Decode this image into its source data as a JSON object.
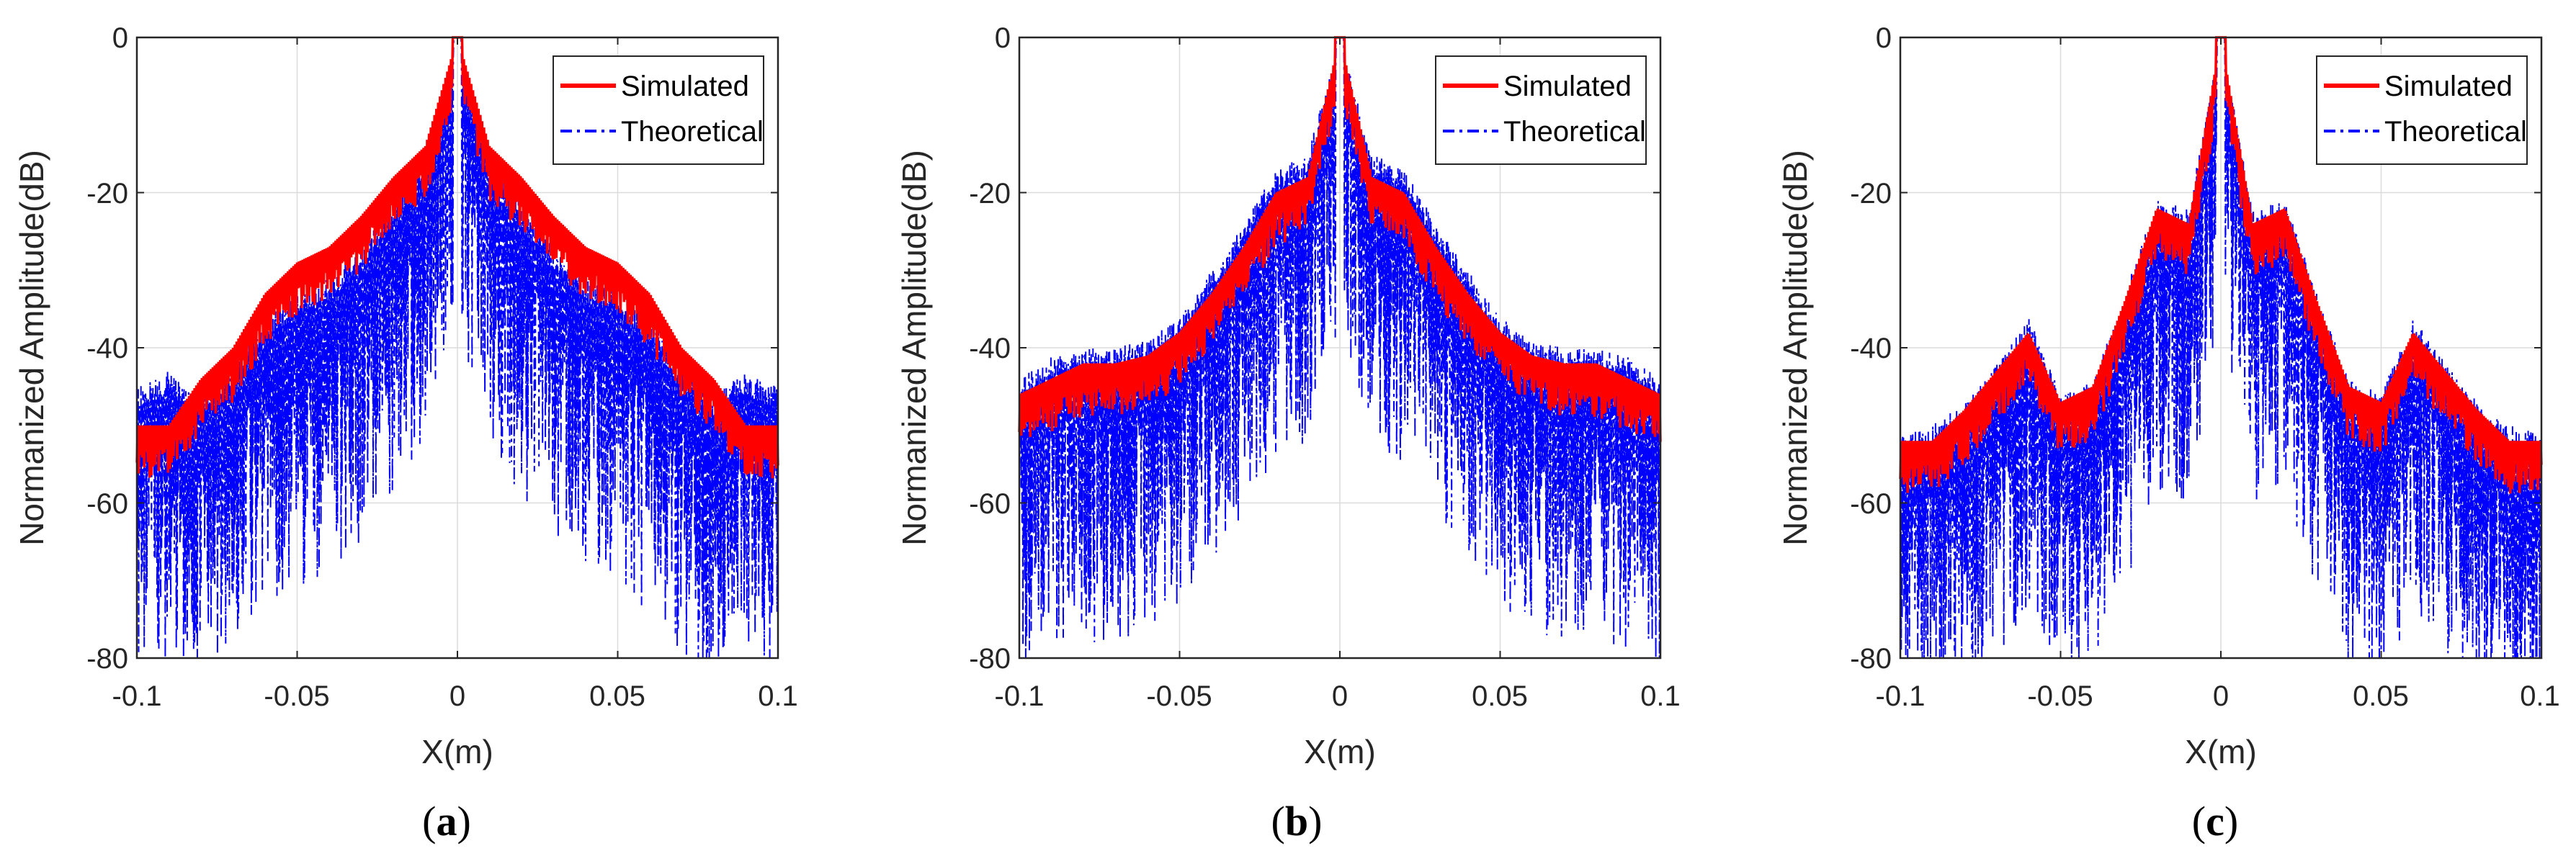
{
  "figure": {
    "colors": {
      "simulated": "#ff0000",
      "theoretical": "#0000ff",
      "grid": "#dcdcdc",
      "axis": "#262626"
    }
  },
  "chart_data": [
    {
      "type": "line",
      "panel": "a",
      "caption": {
        "open": "(",
        "letter": "a",
        "close": ")"
      },
      "xlabel": "X(m)",
      "ylabel": "Normanized Amplitude(dB)",
      "xlim": [
        -0.1,
        0.1
      ],
      "ylim": [
        -80,
        0
      ],
      "xticks": [
        -0.1,
        -0.05,
        0,
        0.05,
        0.1
      ],
      "xtick_labels": [
        "-0.1",
        "-0.05",
        "0",
        "0.05",
        "0.1"
      ],
      "yticks": [
        0,
        -20,
        -40,
        -60,
        -80
      ],
      "ytick_labels": [
        "0",
        "-20",
        "-40",
        "-60",
        "-80"
      ],
      "grid": true,
      "legend": {
        "position": "top-right",
        "entries": [
          "Simulated",
          "Theoretical"
        ]
      },
      "series": [
        {
          "name": "Simulated",
          "style": "solid",
          "x": [
            -0.1,
            -0.09,
            -0.08,
            -0.07,
            -0.06,
            -0.05,
            -0.04,
            -0.03,
            -0.02,
            -0.01,
            0,
            0.01,
            0.02,
            0.03,
            0.04,
            0.05,
            0.06,
            0.07,
            0.08,
            0.09,
            0.1
          ],
          "envelope": [
            -50,
            -50,
            -44,
            -40,
            -33,
            -29,
            -27,
            -23,
            -18,
            -14,
            0,
            -14,
            -18,
            -23,
            -27,
            -29,
            -33,
            -40,
            -44,
            -50,
            -50
          ]
        },
        {
          "name": "Theoretical",
          "style": "dashdot",
          "x": [
            -0.1,
            -0.09,
            -0.08,
            -0.07,
            -0.06,
            -0.05,
            -0.04,
            -0.03,
            -0.02,
            -0.01,
            0,
            0.01,
            0.02,
            0.03,
            0.04,
            0.05,
            0.06,
            0.07,
            0.08,
            0.09,
            0.1
          ],
          "envelope": [
            -45,
            -43,
            -46,
            -42,
            -36,
            -33,
            -31,
            -27,
            -21,
            -15,
            0,
            -15,
            -21,
            -27,
            -31,
            -33,
            -36,
            -42,
            -46,
            -43,
            -45
          ]
        }
      ]
    },
    {
      "type": "line",
      "panel": "b",
      "caption": {
        "open": "(",
        "letter": "b",
        "close": ")"
      },
      "xlabel": "X(m)",
      "ylabel": "Normanized Amplitude(dB)",
      "xlim": [
        -0.1,
        0.1
      ],
      "ylim": [
        -80,
        0
      ],
      "xticks": [
        -0.1,
        -0.05,
        0,
        0.05,
        0.1
      ],
      "xtick_labels": [
        "-0.1",
        "-0.05",
        "0",
        "0.05",
        "0.1"
      ],
      "yticks": [
        0,
        -20,
        -40,
        -60,
        -80
      ],
      "ytick_labels": [
        "0",
        "-20",
        "-40",
        "-60",
        "-80"
      ],
      "grid": true,
      "legend": {
        "position": "top-right",
        "entries": [
          "Simulated",
          "Theoretical"
        ]
      },
      "series": [
        {
          "name": "Simulated",
          "style": "solid",
          "x": [
            -0.1,
            -0.09,
            -0.08,
            -0.07,
            -0.06,
            -0.05,
            -0.04,
            -0.03,
            -0.02,
            -0.01,
            0,
            0.01,
            0.02,
            0.03,
            0.04,
            0.05,
            0.06,
            0.07,
            0.08,
            0.09,
            0.1
          ],
          "envelope": [
            -46,
            -44,
            -42,
            -42,
            -41,
            -38,
            -33,
            -27,
            -20,
            -18,
            0,
            -18,
            -20,
            -27,
            -33,
            -38,
            -41,
            -42,
            -42,
            -44,
            -46
          ]
        },
        {
          "name": "Theoretical",
          "style": "dashdot",
          "x": [
            -0.1,
            -0.09,
            -0.08,
            -0.07,
            -0.06,
            -0.05,
            -0.04,
            -0.03,
            -0.02,
            -0.01,
            0,
            0.01,
            0.02,
            0.03,
            0.04,
            0.05,
            0.06,
            0.07,
            0.08,
            0.09,
            0.1
          ],
          "envelope": [
            -44,
            -41,
            -40,
            -40,
            -39,
            -36,
            -30,
            -24,
            -17,
            -15,
            0,
            -15,
            -17,
            -24,
            -30,
            -36,
            -39,
            -40,
            -40,
            -41,
            -44
          ]
        }
      ]
    },
    {
      "type": "line",
      "panel": "c",
      "caption": {
        "open": "(",
        "letter": "c",
        "close": ")"
      },
      "xlabel": "X(m)",
      "ylabel": "Normanized Amplitude(dB)",
      "xlim": [
        -0.1,
        0.1
      ],
      "ylim": [
        -80,
        0
      ],
      "xticks": [
        -0.1,
        -0.05,
        0,
        0.05,
        0.1
      ],
      "xtick_labels": [
        "-0.1",
        "-0.05",
        "0",
        "0.05",
        "0.1"
      ],
      "yticks": [
        0,
        -20,
        -40,
        -60,
        -80
      ],
      "ytick_labels": [
        "0",
        "-20",
        "-40",
        "-60",
        "-80"
      ],
      "grid": true,
      "legend": {
        "position": "top-right",
        "entries": [
          "Simulated",
          "Theoretical"
        ]
      },
      "series": [
        {
          "name": "Simulated",
          "style": "solid",
          "x": [
            -0.1,
            -0.09,
            -0.08,
            -0.07,
            -0.06,
            -0.05,
            -0.04,
            -0.03,
            -0.02,
            -0.01,
            0,
            0.01,
            0.02,
            0.03,
            0.04,
            0.05,
            0.06,
            0.07,
            0.08,
            0.09,
            0.1
          ],
          "envelope": [
            -52,
            -52,
            -48,
            -43,
            -38,
            -47,
            -45,
            -34,
            -22,
            -24,
            0,
            -24,
            -22,
            -34,
            -45,
            -47,
            -38,
            -43,
            -48,
            -52,
            -52
          ]
        },
        {
          "name": "Theoretical",
          "style": "dashdot",
          "x": [
            -0.1,
            -0.09,
            -0.08,
            -0.07,
            -0.06,
            -0.05,
            -0.04,
            -0.03,
            -0.02,
            -0.01,
            0,
            0.01,
            0.02,
            0.03,
            0.04,
            0.05,
            0.06,
            0.07,
            0.08,
            0.09,
            0.1
          ],
          "envelope": [
            -51,
            -50,
            -47,
            -42,
            -36,
            -46,
            -44,
            -33,
            -21,
            -22,
            0,
            -22,
            -21,
            -33,
            -44,
            -46,
            -36,
            -42,
            -47,
            -50,
            -51
          ]
        }
      ]
    }
  ]
}
